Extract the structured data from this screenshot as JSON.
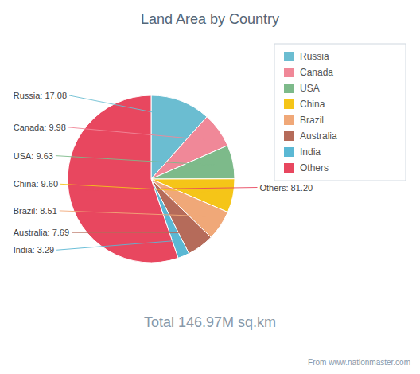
{
  "chart_data": {
    "type": "pie",
    "title": "Land Area by Country",
    "categories": [
      "Russia",
      "Canada",
      "USA",
      "China",
      "Brazil",
      "Australia",
      "India",
      "Others"
    ],
    "values": [
      17.08,
      9.98,
      9.63,
      9.6,
      8.51,
      7.69,
      3.29,
      81.2
    ],
    "value_labels": [
      "Russia: 17.08",
      "Canada: 9.98",
      "USA: 9.63",
      "China: 9.60",
      "Brazil: 8.51",
      "Australia: 7.69",
      "India: 3.29",
      "Others: 81.20"
    ],
    "colors": [
      "#6bbdd1",
      "#f08898",
      "#7dba8a",
      "#f5c518",
      "#f0a878",
      "#b56b5a",
      "#5bb8d4",
      "#e8475f"
    ],
    "data_labels": true,
    "legend": "right",
    "annotations": [
      "Total 146.97M sq.km",
      "From www.nationmaster.com"
    ]
  }
}
